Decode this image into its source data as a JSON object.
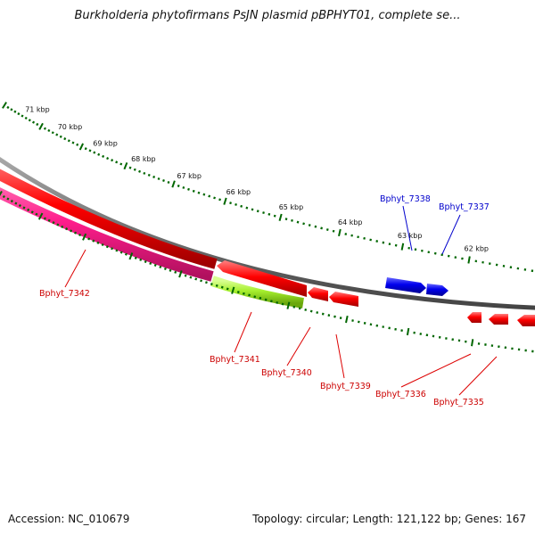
{
  "title": "Burkholderia phytofirmans PsJN plasmid pBPHYT01, complete se...",
  "accession": "Accession: NC_010679",
  "topology": "Topology: circular; Length: 121,122 bp; Genes: 167",
  "kbp_labels": [
    "71 kbp",
    "70 kbp",
    "69 kbp",
    "68 kbp",
    "67 kbp",
    "66 kbp",
    "65 kbp",
    "64 kbp",
    "63 kbp",
    "62 kbp"
  ],
  "colors": {
    "red": "#ee0000",
    "blue": "#0000e6",
    "magenta": "#ff1e8c",
    "lime": "#a6ef2e",
    "backbone": "#888888",
    "tick": "#006600"
  },
  "genes": [
    {
      "id": "Bphyt_7342",
      "label": "Bphyt_7342",
      "color": "red"
    },
    {
      "id": "Bphyt_7341",
      "label": "Bphyt_7341",
      "color": "red"
    },
    {
      "id": "Bphyt_7340",
      "label": "Bphyt_7340",
      "color": "red"
    },
    {
      "id": "Bphyt_7339",
      "label": "Bphyt_7339",
      "color": "red"
    },
    {
      "id": "Bphyt_7338",
      "label": "Bphyt_7338",
      "color": "blue"
    },
    {
      "id": "Bphyt_7337",
      "label": "Bphyt_7337",
      "color": "blue"
    },
    {
      "id": "Bphyt_7336",
      "label": "Bphyt_7336",
      "color": "red"
    },
    {
      "id": "Bphyt_7335",
      "label": "Bphyt_7335",
      "color": "red"
    }
  ]
}
